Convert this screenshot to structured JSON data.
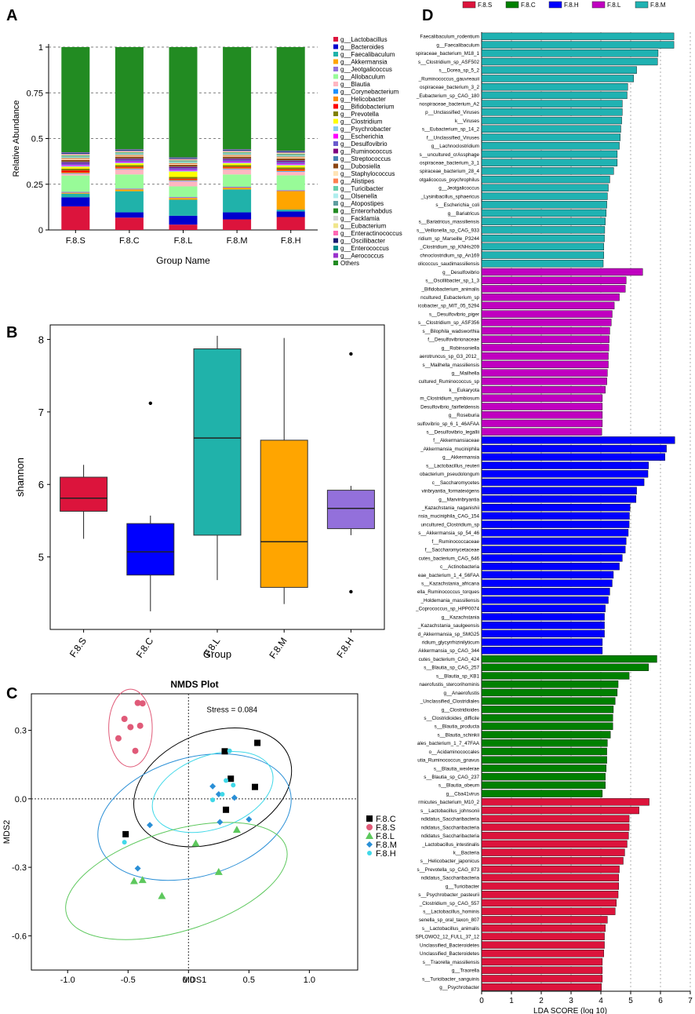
{
  "colors": {
    "F.8.S": "#dc143c",
    "F.8.C": "#008000",
    "F.8.H": "#0000ff",
    "F.8.L": "#c000c0",
    "F.8.M": "#20b2b2",
    "box_S": "#dc143c",
    "box_C": "#0000ff",
    "box_L": "#20b2aa",
    "box_M": "#ffa500",
    "box_H": "#9370db"
  },
  "chart_data": [
    {
      "panel": "A",
      "type": "bar",
      "stacked": true,
      "xlabel": "Group Name",
      "ylabel": "Relative Abundance",
      "ylim": [
        0,
        1
      ],
      "yticks": [
        "0",
        "0.25",
        "0.5",
        "0.75",
        "1"
      ],
      "categories": [
        "F.8.S",
        "F.8.C",
        "F.8.L",
        "F.8.M",
        "F.8.H"
      ],
      "series": [
        {
          "name": "g__Lactobacillus",
          "color": "#dc143c",
          "values": [
            0.13,
            0.07,
            0.03,
            0.06,
            0.07
          ]
        },
        {
          "name": "g__Bacteroides",
          "color": "#0000cd",
          "values": [
            0.05,
            0.03,
            0.05,
            0.04,
            0.03
          ]
        },
        {
          "name": "g__Faecalibaculum",
          "color": "#20b2aa",
          "values": [
            0.02,
            0.12,
            0.09,
            0.13,
            0.01
          ]
        },
        {
          "name": "g__Akkermansia",
          "color": "#ffa500",
          "values": [
            0.005,
            0.01,
            0.01,
            0.01,
            0.1
          ]
        },
        {
          "name": "g__Jeotgalicoccus",
          "color": "#9370db",
          "values": [
            0.005,
            0.005,
            0.005,
            0.005,
            0.005
          ]
        },
        {
          "name": "g__Allobaculum",
          "color": "#98fb98",
          "values": [
            0.09,
            0.08,
            0.06,
            0.07,
            0.08
          ]
        },
        {
          "name": "g__Blautia",
          "color": "#ffb6c1",
          "values": [
            0.01,
            0.03,
            0.03,
            0.03,
            0.02
          ]
        },
        {
          "name": "g__Corynebacterium",
          "color": "#1e90ff",
          "values": [
            0.003,
            0.003,
            0.003,
            0.003,
            0.003
          ]
        },
        {
          "name": "g__Helicobacter",
          "color": "#ff8c00",
          "values": [
            0.005,
            0.005,
            0.005,
            0.005,
            0.005
          ]
        },
        {
          "name": "g__Bifidobacterium",
          "color": "#ff0000",
          "values": [
            0.01,
            0.005,
            0.005,
            0.005,
            0.005
          ]
        },
        {
          "name": "g__Prevotella",
          "color": "#808000",
          "values": [
            0.01,
            0.01,
            0.01,
            0.01,
            0.01
          ]
        },
        {
          "name": "g__Clostridium",
          "color": "#ffff00",
          "values": [
            0.01,
            0.01,
            0.03,
            0.01,
            0.01
          ]
        },
        {
          "name": "g__Psychrobacter",
          "color": "#87ceeb",
          "values": [
            0.005,
            0.005,
            0.005,
            0.005,
            0.005
          ]
        },
        {
          "name": "g__Escherichia",
          "color": "#ff00ff",
          "values": [
            0.005,
            0.005,
            0.005,
            0.005,
            0.005
          ]
        },
        {
          "name": "g__Desulfovibrio",
          "color": "#6a5acd",
          "values": [
            0.01,
            0.01,
            0.01,
            0.01,
            0.01
          ]
        },
        {
          "name": "g__Ruminococcus",
          "color": "#800080",
          "values": [
            0.005,
            0.005,
            0.005,
            0.005,
            0.005
          ]
        },
        {
          "name": "g__Streptococcus",
          "color": "#4682b4",
          "values": [
            0.003,
            0.003,
            0.003,
            0.003,
            0.003
          ]
        },
        {
          "name": "g__Dubosiella",
          "color": "#8b4513",
          "values": [
            0.01,
            0.01,
            0.01,
            0.01,
            0.01
          ]
        },
        {
          "name": "g__Staphylococcus",
          "color": "#ffe4b5",
          "values": [
            0.005,
            0.005,
            0.005,
            0.005,
            0.005
          ]
        },
        {
          "name": "g__Alistipes",
          "color": "#ff7f50",
          "values": [
            0.005,
            0.005,
            0.005,
            0.005,
            0.005
          ]
        },
        {
          "name": "g__Turicibacter",
          "color": "#66cdaa",
          "values": [
            0.005,
            0.005,
            0.005,
            0.005,
            0.005
          ]
        },
        {
          "name": "g__Olsenella",
          "color": "#afeeee",
          "values": [
            0.003,
            0.003,
            0.003,
            0.003,
            0.003
          ]
        },
        {
          "name": "g__Atopostipes",
          "color": "#5f9ea0",
          "values": [
            0.003,
            0.003,
            0.003,
            0.003,
            0.003
          ]
        },
        {
          "name": "g__Enterorhabdus",
          "color": "#228b22",
          "values": [
            0.003,
            0.003,
            0.003,
            0.003,
            0.003
          ]
        },
        {
          "name": "g__Facklamia",
          "color": "#d3d3d3",
          "values": [
            0.003,
            0.003,
            0.003,
            0.003,
            0.003
          ]
        },
        {
          "name": "g__Eubacterium",
          "color": "#f0e68c",
          "values": [
            0.003,
            0.003,
            0.003,
            0.003,
            0.003
          ]
        },
        {
          "name": "g__Enteractinococcus",
          "color": "#ff69b4",
          "values": [
            0.003,
            0.003,
            0.003,
            0.003,
            0.003
          ]
        },
        {
          "name": "g__Oscillibacter",
          "color": "#191970",
          "values": [
            0.003,
            0.003,
            0.003,
            0.003,
            0.003
          ]
        },
        {
          "name": "g__Enterococcus",
          "color": "#008b8b",
          "values": [
            0.003,
            0.003,
            0.003,
            0.003,
            0.003
          ]
        },
        {
          "name": "g__Aerococcus",
          "color": "#9932cc",
          "values": [
            0.003,
            0.003,
            0.003,
            0.003,
            0.003
          ]
        },
        {
          "name": "Others",
          "color": "#228b22",
          "values": [
            0.58,
            0.58,
            0.62,
            0.58,
            0.56
          ]
        }
      ]
    },
    {
      "panel": "B",
      "type": "box",
      "xlabel": "Group",
      "ylabel": "shannon",
      "ylim": [
        4.0,
        8.2
      ],
      "yticks": [
        "5",
        "6",
        "7",
        "8"
      ],
      "categories": [
        "F.8.S",
        "F.8.C",
        "F.8.L",
        "F.8.M",
        "F.8.H"
      ],
      "boxes": [
        {
          "group": "F.8.S",
          "min": 5.25,
          "q1": 5.63,
          "median": 5.81,
          "q3": 6.1,
          "max": 6.27,
          "outliers": []
        },
        {
          "group": "F.8.C",
          "min": 4.25,
          "q1": 4.75,
          "median": 5.07,
          "q3": 5.46,
          "max": 5.57,
          "outliers": [
            7.12
          ]
        },
        {
          "group": "F.8.L",
          "min": 4.68,
          "q1": 5.3,
          "median": 6.64,
          "q3": 7.87,
          "max": 8.05,
          "outliers": []
        },
        {
          "group": "F.8.M",
          "min": 4.35,
          "q1": 4.58,
          "median": 5.21,
          "q3": 6.61,
          "max": 8.02,
          "outliers": []
        },
        {
          "group": "F.8.H",
          "min": 5.3,
          "q1": 5.39,
          "median": 5.67,
          "q3": 5.92,
          "max": 5.98,
          "outliers": [
            4.52,
            7.8
          ]
        }
      ]
    },
    {
      "panel": "C",
      "type": "scatter",
      "title": "NMDS Plot",
      "annotation": "Stress = 0.084",
      "xlabel": "MDS1",
      "ylabel": "MDS2",
      "xlim": [
        -1.3,
        1.4
      ],
      "ylim": [
        -0.75,
        0.46
      ],
      "xticks": [
        -1.0,
        -0.5,
        0.0,
        0.5,
        1.0
      ],
      "xtick_labels": [
        "-1.0",
        "-0.5",
        "0.0",
        "0.5",
        "1.0"
      ],
      "yticks": [
        -0.6,
        -0.3,
        0.0,
        0.3
      ],
      "ytick_labels": [
        "-0.6",
        "-0.3",
        "0.0",
        "0.3"
      ],
      "series": [
        {
          "name": "F.8.C",
          "color": "#000000",
          "marker": "square",
          "x": [
            -0.52,
            0.3,
            0.35,
            0.55,
            0.57,
            0.31
          ],
          "y": [
            -0.155,
            0.208,
            0.088,
            0.052,
            0.245,
            -0.048
          ]
        },
        {
          "name": "F.8.S",
          "color": "#e05a78",
          "marker": "circle",
          "x": [
            -0.58,
            -0.53,
            -0.48,
            -0.42,
            -0.4,
            -0.44,
            -0.38
          ],
          "y": [
            0.265,
            0.35,
            0.314,
            0.42,
            0.32,
            0.21,
            0.418
          ]
        },
        {
          "name": "F.8.L",
          "color": "#5dc85d",
          "marker": "triangle",
          "x": [
            -0.45,
            -0.38,
            -0.22,
            0.06,
            0.25,
            0.4
          ],
          "y": [
            -0.36,
            -0.355,
            -0.425,
            -0.195,
            -0.32,
            -0.135
          ]
        },
        {
          "name": "F.8.M",
          "color": "#2a8fd6",
          "marker": "diamond",
          "x": [
            -0.32,
            -0.42,
            0.2,
            0.25,
            0.38,
            0.5,
            0.26
          ],
          "y": [
            -0.115,
            -0.305,
            0.055,
            0.02,
            0.005,
            -0.09,
            -0.102
          ]
        },
        {
          "name": "F.8.H",
          "color": "#40d8e8",
          "marker": "circle",
          "x": [
            -0.53,
            0.34,
            0.28,
            0.2,
            0.31,
            0.37
          ],
          "y": [
            -0.19,
            0.21,
            0.02,
            -0.005,
            0.08,
            0.06
          ]
        }
      ],
      "ellipses": [
        {
          "group": "F.8.S",
          "color": "#e05a78",
          "cx": -0.48,
          "cy": 0.31,
          "rx": 0.18,
          "ry": 0.17,
          "rotation": 0
        },
        {
          "group": "F.8.C",
          "color": "#000000",
          "cx": 0.2,
          "cy": 0.05,
          "rx": 0.68,
          "ry": 0.24,
          "rotation": 22
        },
        {
          "group": "F.8.M",
          "color": "#2a8fd6",
          "cx": 0.05,
          "cy": -0.08,
          "rx": 0.82,
          "ry": 0.26,
          "rotation": 16
        },
        {
          "group": "F.8.H",
          "color": "#40d8e8",
          "cx": 0.2,
          "cy": 0.03,
          "rx": 0.52,
          "ry": 0.16,
          "rotation": 20
        },
        {
          "group": "F.8.L",
          "color": "#5dc85d",
          "cx": -0.1,
          "cy": -0.36,
          "rx": 0.95,
          "ry": 0.22,
          "rotation": 17
        }
      ]
    },
    {
      "panel": "D",
      "type": "bar",
      "orientation": "horizontal",
      "xlabel": "LDA SCORE (log 10)",
      "xlim": [
        0,
        7
      ],
      "xticks": [
        "0",
        "1",
        "2",
        "3",
        "4",
        "5",
        "6",
        "7"
      ],
      "legend": [
        "F.8.S",
        "F.8.C",
        "F.8.H",
        "F.8.L",
        "F.8.M"
      ],
      "groups": [
        {
          "group": "F.8.M",
          "labels": [
            "Faecalibaculum_rodentium",
            "g__Faecalibaculum",
            "spiraceae_bacterium_M18_1",
            "s__Clostridium_sp_ASF502",
            "s__Dorea_sp_5_2",
            "_Ruminococcus_gauvreauii",
            "ospiraceae_bacterium_3_2",
            "_Eubacterium_sp_CAG_180",
            "nospiraceae_bacterium_A2",
            "p__Unclassified_Viruses",
            "k__Viruses",
            "s__Eubacterium_sp_14_2",
            "f__Unclassified_Viruses",
            "g__Lachnoclostridium",
            "s__uncultured_crAssphage",
            "ospiraceae_bacterium_3_1",
            "spiraceae_bacterium_28_4",
            "otgalicoccus_psychrophilus",
            "g__Jeotgalicoccus",
            "_Lysinibacillus_sphaericus",
            "s__Escherichia_coli",
            "g__Bariatricus",
            "s__Bariatricus_massiliensis",
            "s__Veillonella_sp_CAG_933",
            "ridium_sp_Marseille_P3244",
            "_Clostridium_sp_KNHs209",
            "chnoclostridium_sp_An169",
            "olicoccus_saudimassiliensis"
          ],
          "values": [
            6.45,
            6.45,
            5.92,
            5.9,
            5.2,
            5.1,
            4.9,
            4.88,
            4.72,
            4.72,
            4.7,
            4.67,
            4.65,
            4.62,
            4.55,
            4.55,
            4.43,
            4.3,
            4.25,
            4.22,
            4.2,
            4.18,
            4.15,
            4.13,
            4.12,
            4.1,
            4.1,
            4.08
          ]
        },
        {
          "group": "F.8.L",
          "labels": [
            "g__Desulfovibrio",
            "s__Oscillibacter_sp_1_3",
            "_Bifidobacterium_animalis",
            "ncultured_Eubacterium_sp",
            "icobacter_sp_MIT_05_5294",
            "s__Desulfovibrio_piger",
            "s__Clostridium_sp_ASF356",
            "s__Bilophila_wadsworthia",
            "f__Desulfovibrionaceae",
            "g__Robinsoniella",
            "aerotruncus_sp_G3_2012_",
            "s__Mailhella_massiliensis",
            "g__Mailhella",
            "cultured_Ruminococcus_sp",
            "k__Eukaryota",
            "m_Clostridium_symbiosum",
            "Desulfovibrio_fairfieldensis",
            "g__Roseburia",
            "sulfovibrio_sp_6_1_46AFAA",
            "s__Desulfovibrio_legallii"
          ],
          "values": [
            5.4,
            4.85,
            4.82,
            4.62,
            4.45,
            4.38,
            4.35,
            4.3,
            4.28,
            4.27,
            4.25,
            4.25,
            4.22,
            4.2,
            4.15,
            4.05,
            4.05,
            4.05,
            4.05,
            4.03
          ]
        },
        {
          "group": "F.8.H",
          "labels": [
            "f__Akkermansiaceae",
            "_Akkermansia_muciniphila",
            "g__Akkermansia",
            "s__Lactobacillus_reuteri",
            "obacterium_pseudolongum",
            "c__Saccharomycetes",
            "vinbryantia_formatexigens",
            "g__Marvinbryantia",
            "_Kazachstania_naganishii",
            "nsia_muciniphila_CAG_154",
            "uncultured_Clostridium_sp",
            "s__Akkermansia_sp_54_46",
            "f__Ruminococcaceae",
            "f__Saccharomycetaceae",
            "cutes_bacterium_CAG_646",
            "c__Actinobacteria",
            "eae_bacterium_1_4_56FAA",
            "s__Kazachstania_africana",
            "ella_Ruminococcus_torques",
            "_Holdemania_massiliensis",
            "_Coprococcus_sp_HPP0074",
            "g__Kazachstania",
            "_Kazachstania_saulgeensis",
            "d_Akkermansia_sp_SMG25",
            "ridium_glycyrrhizinilyticum",
            "Akkermansia_sp_CAG_344"
          ],
          "values": [
            6.48,
            6.2,
            6.15,
            5.6,
            5.58,
            5.45,
            5.2,
            5.18,
            4.98,
            4.96,
            4.95,
            4.92,
            4.85,
            4.82,
            4.72,
            4.62,
            4.42,
            4.38,
            4.3,
            4.25,
            4.15,
            4.12,
            4.12,
            4.12,
            4.05,
            4.05
          ]
        },
        {
          "group": "F.8.C",
          "labels": [
            "cutes_bacterium_CAG_424",
            "s__Blautia_sp_CAG_257",
            "s__Blautia_sp_KB1",
            "naerofustis_stercorihominis",
            "g__Anaerofustis",
            "_Unclassified_Clostridiales",
            "g__Clostridioides",
            "s__Clostridioides_difficile",
            "s__Blautia_producta",
            "s__Blautia_schinkii",
            "ales_bacterium_1_7_47FAA",
            "o__Acidaminococcales",
            "utia_Ruminococcus_gnavus",
            "s__Blautia_wexlerae",
            "s__Blautia_sp_CAG_237",
            "s__Blautia_obeum",
            "g__Cba41virus"
          ],
          "values": [
            5.88,
            5.6,
            4.95,
            4.58,
            4.55,
            4.48,
            4.42,
            4.4,
            4.4,
            4.32,
            4.22,
            4.2,
            4.2,
            4.18,
            4.15,
            4.15,
            4.05
          ]
        },
        {
          "group": "F.8.S",
          "labels": [
            "rmicutes_bacterium_M10_2",
            "s__Lactobacillus_johnsonii",
            "ndidatus_Saccharibacteria",
            "ndidatus_Saccharibacteria",
            "ndidatus_Saccharibacteria",
            "_Lactobacillus_intestinalis",
            "k__Bacteria",
            "s__Helicobacter_japonicus",
            "s__Prevotella_sp_CAG_873",
            "ndidatus_Saccharibacteria",
            "g__Turicibacter",
            "s__Psychrobacter_pasteurii",
            "_Clostridium_sp_CAG_557",
            "s__Lactobacillus_hominis",
            "senella_sp_oral_taxon_807",
            "s__Lactobacillus_animalis",
            "SPLOWO2_12_FULL_37_12",
            "Unclassified_Bacteroidetes",
            "Unclassified_Bacteroidetes",
            "s__Traorella_massiliensis",
            "g__Traorella",
            "s__Turicibacter_sanguinis",
            "g__Psychrobacter"
          ],
          "values": [
            5.62,
            5.28,
            4.95,
            4.95,
            4.93,
            4.88,
            4.8,
            4.75,
            4.62,
            4.6,
            4.6,
            4.58,
            4.52,
            4.48,
            4.22,
            4.15,
            4.12,
            4.12,
            4.1,
            4.05,
            4.05,
            4.05,
            4.02
          ]
        }
      ]
    }
  ],
  "panel_letters": {
    "A": "A",
    "B": "B",
    "C": "C",
    "D": "D"
  }
}
